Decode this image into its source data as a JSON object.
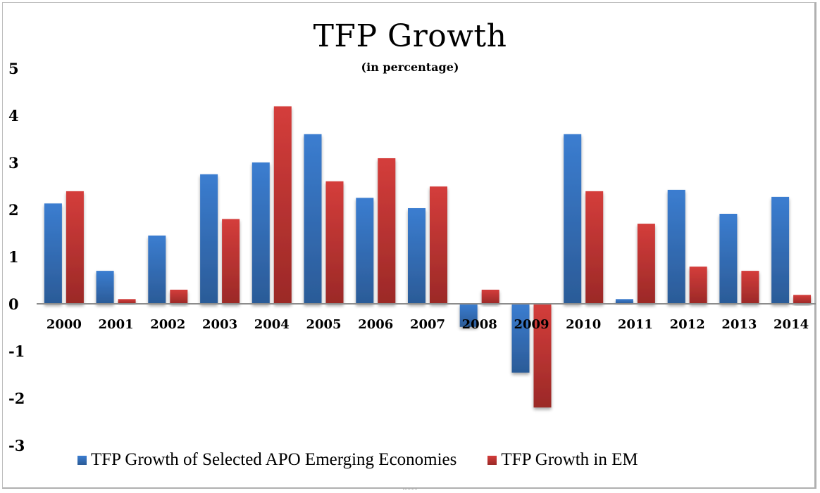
{
  "chart_data": {
    "type": "bar",
    "title": "TFP Growth",
    "subtitle": "(in percentage)",
    "xlabel": "",
    "ylabel": "",
    "ylim": [
      -3,
      5
    ],
    "yticks": [
      5,
      4,
      3,
      2,
      1,
      0,
      -1,
      -2,
      -3
    ],
    "ytick_labels": [
      "5",
      "4",
      "3",
      "2",
      "1",
      "0",
      "-1",
      "-2",
      "-3"
    ],
    "grid": false,
    "legend_position": "bottom",
    "categories": [
      "2000",
      "2001",
      "2002",
      "2003",
      "2004",
      "2005",
      "2006",
      "2007",
      "2008",
      "2009",
      "2010",
      "2011",
      "2012",
      "2013",
      "2014"
    ],
    "series": [
      {
        "name": "TFP Growth of Selected APO Emerging Economies",
        "color": "#3a7bcc",
        "color_dark": "#2d5c99",
        "values": [
          2.13,
          0.7,
          1.45,
          2.75,
          3.0,
          3.6,
          2.25,
          2.03,
          -0.49,
          -1.46,
          3.6,
          0.1,
          2.42,
          1.91,
          2.27
        ]
      },
      {
        "name": "TFP Growth in EM",
        "color": "#d23c3a",
        "color_dark": "#9c2a28",
        "values": [
          2.39,
          0.1,
          0.3,
          1.8,
          4.19,
          2.6,
          3.09,
          2.49,
          0.3,
          -2.2,
          2.39,
          1.7,
          0.79,
          0.7,
          0.19
        ]
      }
    ]
  }
}
